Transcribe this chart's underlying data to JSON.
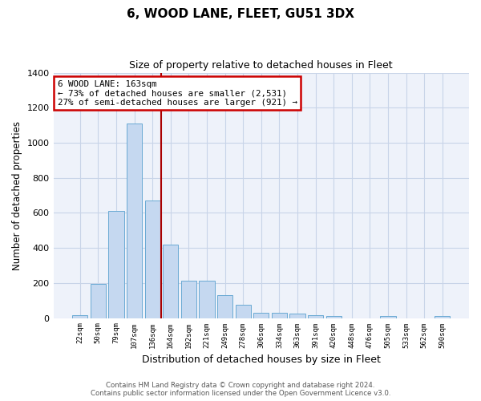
{
  "title1": "6, WOOD LANE, FLEET, GU51 3DX",
  "title2": "Size of property relative to detached houses in Fleet",
  "xlabel": "Distribution of detached houses by size in Fleet",
  "ylabel": "Number of detached properties",
  "categories": [
    "22sqm",
    "50sqm",
    "79sqm",
    "107sqm",
    "136sqm",
    "164sqm",
    "192sqm",
    "221sqm",
    "249sqm",
    "278sqm",
    "306sqm",
    "334sqm",
    "363sqm",
    "391sqm",
    "420sqm",
    "448sqm",
    "476sqm",
    "505sqm",
    "533sqm",
    "562sqm",
    "590sqm"
  ],
  "values": [
    15,
    195,
    610,
    1110,
    670,
    420,
    215,
    215,
    130,
    75,
    32,
    32,
    25,
    15,
    12,
    0,
    0,
    10,
    0,
    0,
    10
  ],
  "bar_color": "#c5d8f0",
  "bar_edge_color": "#6aaad4",
  "annotation_text": "6 WOOD LANE: 163sqm\n← 73% of detached houses are smaller (2,531)\n27% of semi-detached houses are larger (921) →",
  "annotation_box_color": "white",
  "annotation_box_edge_color": "#cc0000",
  "vline_color": "#aa0000",
  "ylim": [
    0,
    1400
  ],
  "yticks": [
    0,
    200,
    400,
    600,
    800,
    1000,
    1200,
    1400
  ],
  "footer1": "Contains HM Land Registry data © Crown copyright and database right 2024.",
  "footer2": "Contains public sector information licensed under the Open Government Licence v3.0.",
  "bg_color": "#eef2fa",
  "grid_color": "#c8d4e8"
}
